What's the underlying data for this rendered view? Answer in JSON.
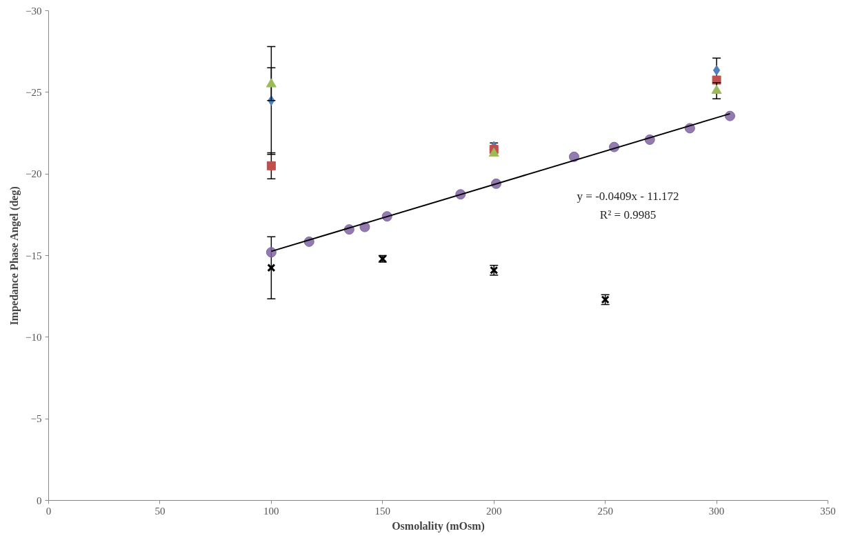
{
  "chart_data": {
    "type": "scatter",
    "xlabel": "Osmolality (mOsm)",
    "ylabel": "Impedance Phase Angel (deg)",
    "xlim": [
      0,
      350
    ],
    "xticks": [
      0,
      50,
      100,
      150,
      200,
      250,
      300,
      350
    ],
    "ylim": [
      0,
      -30
    ],
    "yticks": [
      0,
      -5,
      -10,
      -15,
      -20,
      -25,
      -30
    ],
    "grid": false,
    "series": [
      {
        "color": "#4f81bd",
        "marker": "diamond",
        "x": [
          100,
          200,
          300
        ],
        "values": [
          -24.5,
          -21.7,
          -26.35
        ],
        "errors": [
          3.3,
          0.2,
          0.75
        ]
      },
      {
        "color": "#c0504d",
        "marker": "square",
        "x": [
          100,
          200,
          300
        ],
        "values": [
          -20.5,
          -21.5,
          -25.75
        ],
        "errors": [
          0.8,
          null,
          null
        ]
      },
      {
        "color": "#9bbb59",
        "marker": "triangle",
        "x": [
          100,
          200,
          300
        ],
        "values": [
          -25.5,
          -21.25,
          -25.1
        ],
        "errors": [
          1.0,
          null,
          0.5
        ]
      },
      {
        "color": "#000000",
        "marker": "cross",
        "x": [
          100,
          150,
          200,
          250
        ],
        "values": [
          -14.25,
          -14.8,
          -14.1,
          -12.3
        ],
        "errors": [
          1.9,
          0.2,
          0.3,
          0.3
        ]
      },
      {
        "color": "#8064a2",
        "marker": "circle",
        "x": [
          100,
          117,
          135,
          142,
          152,
          185,
          201,
          236,
          254,
          270,
          288,
          306
        ],
        "values": [
          -15.2,
          -15.85,
          -16.6,
          -16.75,
          -17.4,
          -18.75,
          -19.4,
          -21.05,
          -21.65,
          -22.1,
          -22.8,
          -23.55
        ]
      },
      {
        "type": "line",
        "color": "#000000",
        "marker": "none",
        "line_style": "solid",
        "x": [
          100,
          306
        ],
        "values": [
          -15.26,
          -23.69
        ]
      }
    ],
    "annotations": [
      "y = -0.0409x - 11.172",
      "R² = 0.9985"
    ]
  }
}
